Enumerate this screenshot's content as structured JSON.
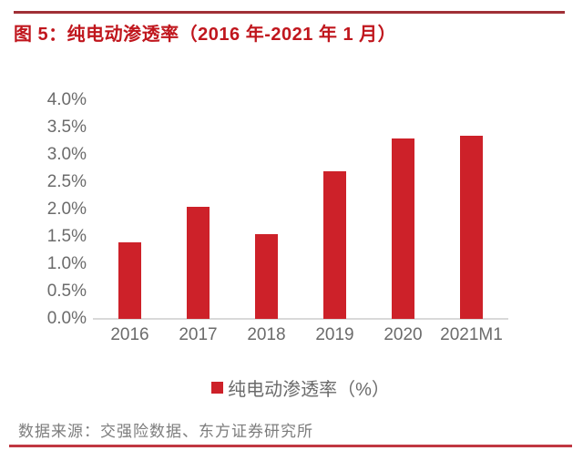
{
  "page": {
    "footer_source": "数据来源：交强险数据、东方证券研究所"
  },
  "chart_data": {
    "type": "bar",
    "title": "图 5：纯电动渗透率（2016 年-2021 年 1 月）",
    "categories": [
      "2016",
      "2017",
      "2018",
      "2019",
      "2020",
      "2021M1"
    ],
    "values": [
      1.4,
      2.05,
      1.55,
      2.7,
      3.3,
      3.35
    ],
    "unit": "%",
    "xlabel": "",
    "ylabel": "",
    "ylim": [
      0,
      4
    ],
    "ytick_step": 0.5,
    "ytick_suffix": "%",
    "grid": false,
    "legend": [
      {
        "label": "纯电动渗透率（%）",
        "color": "#CD2129"
      }
    ],
    "legend_position": "bottom",
    "bar_color": "#CD2129",
    "axis_line_color": "#D9D9D9",
    "tick_label_color": "#6B6B6B"
  },
  "colors": {
    "title_red": "#C0161D",
    "top_rule_red": "#A02F36",
    "bottom_rule_red": "#C03742",
    "bar_red": "#CD2129",
    "axis_label_gray": "#6B6B6B",
    "footer_gray": "#7D7D7D"
  }
}
